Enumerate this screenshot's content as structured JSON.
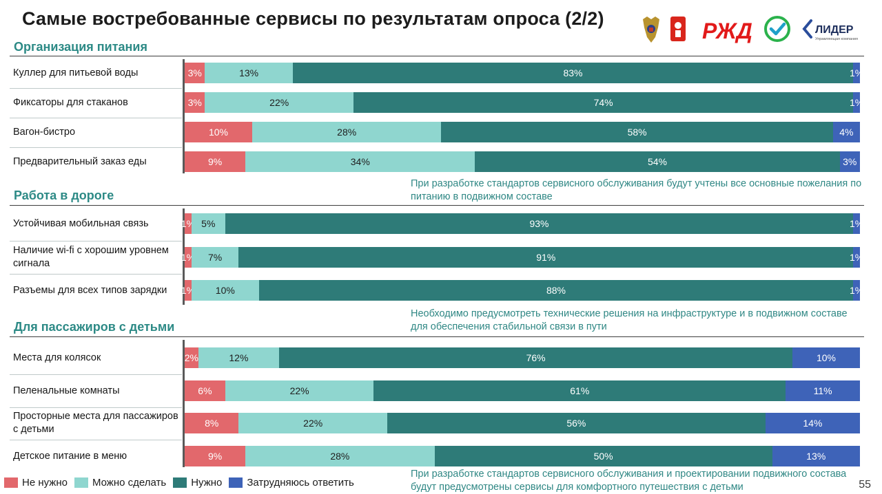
{
  "title": "Самые востребованные сервисы по результатам опроса (2/2)",
  "logos": {
    "emblem": "coat-of-arms-icon",
    "moscow": "moscow-emblem-icon",
    "rzd": "РЖД",
    "check": "check-circle-icon",
    "lider": "ЛИДЕР",
    "lider_sub": "Управляющая компания"
  },
  "colors": {
    "not_needed": "#e2686c",
    "can_do": "#8fd6cf",
    "needed": "#2e7b78",
    "unsure": "#3e63b8",
    "section": "#2d8a86"
  },
  "sections": [
    {
      "title": "Организация питания"
    },
    {
      "title": "Работа в дороге"
    },
    {
      "title": "Для пассажиров с детьми"
    }
  ],
  "notes": [
    "При разработке стандартов сервисного обслуживания будут учтены все основные пожелания по питанию в подвижном составе",
    "Необходимо предусмотреть технические решения на инфраструктуре и в подвижном составе для обеспечения стабильной связи в пути",
    "При разработке стандартов сервисного обслуживания и проектировании подвижного состава будут предусмотрены сервисы для комфортного путешествия с детьми"
  ],
  "chart_data": {
    "type": "bar",
    "stacked": true,
    "orientation": "horizontal",
    "title": "Самые востребованные сервисы по результатам опроса (2/2)",
    "legend": {
      "placement": "bottom-left",
      "entries": [
        "Не нужно",
        "Можно сделать",
        "Нужно",
        "Затрудняюсь ответить"
      ]
    },
    "categories": [
      "Куллер для питьевой воды",
      "Фиксаторы для стаканов",
      "Вагон-бистро",
      "Предварительный заказ еды",
      "Устойчивая мобильная связь",
      "Наличие wi-fi  с хорошим уровнем сигнала",
      "Разъемы для всех типов зарядки",
      "Места для колясок",
      "Пеленальные комнаты",
      "Просторные места для пассажиров с  детьми",
      "Детское питание в меню"
    ],
    "groups": [
      "Организация питания",
      "Работа в дороге",
      "Для пассажиров с детьми"
    ],
    "group_of_category": [
      0,
      0,
      0,
      0,
      1,
      1,
      1,
      2,
      2,
      2,
      2
    ],
    "series": [
      {
        "name": "Не нужно",
        "values": [
          3,
          3,
          10,
          9,
          1,
          1,
          1,
          2,
          6,
          8,
          9
        ],
        "labels": [
          "3%",
          "3%",
          "10%",
          "9%",
          "1%",
          "1%",
          "1%",
          "2%",
          "6%",
          "8%",
          "9%"
        ]
      },
      {
        "name": "Можно сделать",
        "values": [
          13,
          22,
          28,
          34,
          5,
          7,
          10,
          12,
          22,
          22,
          28
        ],
        "labels": [
          "13%",
          "22%",
          "28%",
          "34%",
          "5%",
          "7%",
          "10%",
          "12%",
          "22%",
          "22%",
          "28%"
        ]
      },
      {
        "name": "Нужно",
        "values": [
          83,
          74,
          58,
          54,
          93,
          91,
          88,
          76,
          61,
          56,
          50
        ],
        "labels": [
          "83%",
          "74%",
          "58%",
          "54%",
          "93%",
          "91%",
          "88%",
          "76%",
          "61%",
          "56%",
          "50%"
        ]
      },
      {
        "name": "Затрудняюсь ответить",
        "values": [
          1,
          1,
          4,
          3,
          1,
          1,
          1,
          10,
          11,
          14,
          13
        ],
        "labels": [
          "1%",
          "1%",
          "4%",
          "3%",
          "1%",
          "1%",
          "1%",
          "10%",
          "11%",
          "14%",
          "13%"
        ]
      }
    ],
    "xlim": [
      0,
      100
    ],
    "grid": false
  },
  "page_number": "55"
}
